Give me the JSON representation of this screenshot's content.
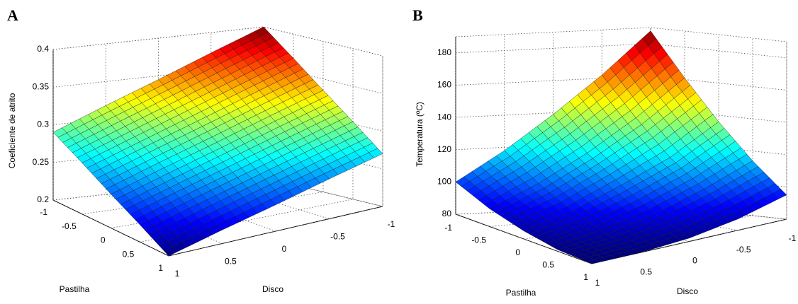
{
  "chart_data": [
    {
      "type": "surface",
      "panel_label": "A",
      "z_label": "Coeficiente de atrito",
      "y_label": "Pastilha",
      "x_label": "Disco",
      "colormap": "jet",
      "x": [
        -1,
        -0.5,
        0,
        0.5,
        1
      ],
      "y": [
        -1,
        -0.5,
        0,
        0.5,
        1
      ],
      "z": [
        [
          0.4,
          0.373,
          0.345,
          0.318,
          0.29
        ],
        [
          0.368,
          0.343,
          0.318,
          0.293,
          0.268
        ],
        [
          0.335,
          0.313,
          0.29,
          0.268,
          0.245
        ],
        [
          0.303,
          0.283,
          0.263,
          0.243,
          0.223
        ],
        [
          0.27,
          0.253,
          0.235,
          0.218,
          0.2
        ]
      ],
      "xlim": [
        -1,
        1
      ],
      "xticks": [
        -1,
        -0.5,
        0,
        0.5,
        1
      ],
      "ylim": [
        -1,
        1
      ],
      "yticks": [
        -1,
        -0.5,
        0,
        0.5,
        1
      ],
      "zlim": [
        0.2,
        0.4
      ],
      "zticks": [
        0.2,
        0.25,
        0.3,
        0.35,
        0.4
      ],
      "grid": true
    },
    {
      "type": "surface",
      "panel_label": "B",
      "z_label": "Temperatura (ºC)",
      "y_label": "Pastilha",
      "x_label": "Disco",
      "colormap": "jet",
      "x": [
        -1,
        -0.5,
        0,
        0.5,
        1
      ],
      "y": [
        -1,
        -0.5,
        0,
        0.5,
        1
      ],
      "z": [
        [
          188,
          162,
          139,
          118,
          100
        ],
        [
          161,
          139,
          120,
          104,
          91
        ],
        [
          136,
          118,
          105,
          93,
          85
        ],
        [
          114,
          102,
          92,
          85,
          81
        ],
        [
          95,
          87,
          82,
          80,
          80
        ]
      ],
      "xlim": [
        -1,
        1
      ],
      "xticks": [
        -1,
        -0.5,
        0,
        0.5,
        1
      ],
      "ylim": [
        -1,
        1
      ],
      "yticks": [
        -1,
        -0.5,
        0,
        0.5,
        1
      ],
      "zlim": [
        80,
        190
      ],
      "zticks": [
        80,
        100,
        120,
        140,
        160,
        180
      ],
      "grid": true
    }
  ]
}
